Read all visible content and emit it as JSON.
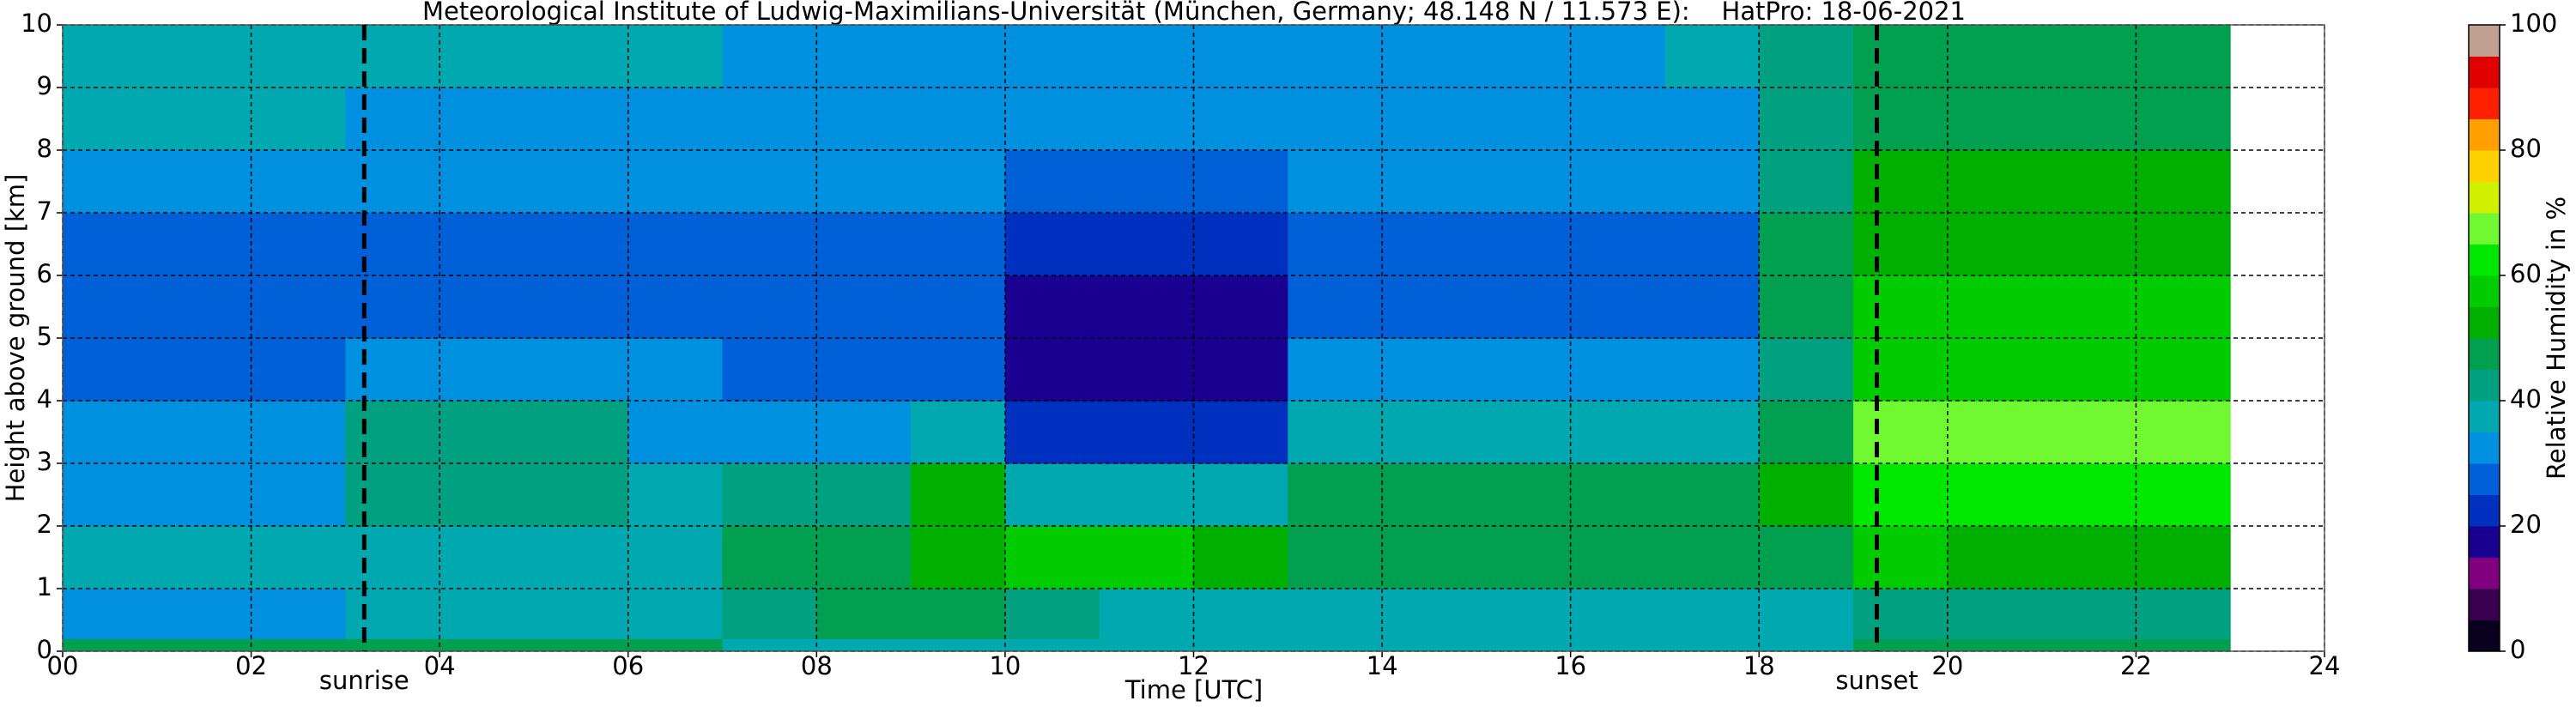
{
  "chart_data": {
    "type": "heatmap",
    "title": "Meteorological Institute of Ludwig-Maximilians-Universität (München, Germany; 48.148 N / 11.573 E):    HatPro: 18-06-2021",
    "xlabel": "Time [UTC]",
    "ylabel": "Height above ground [km]",
    "xlim": [
      0,
      24
    ],
    "ylim": [
      0,
      10
    ],
    "xticks": [
      {
        "value": 0,
        "label": "00"
      },
      {
        "value": 2,
        "label": "02"
      },
      {
        "value": 4,
        "label": "04"
      },
      {
        "value": 6,
        "label": "06"
      },
      {
        "value": 8,
        "label": "08"
      },
      10,
      12,
      14,
      16,
      18,
      20,
      22,
      24
    ],
    "yticks": [
      0,
      1,
      2,
      3,
      4,
      5,
      6,
      7,
      8,
      9,
      10
    ],
    "grid": true,
    "x_edges": [
      0,
      1,
      2,
      3,
      4,
      5,
      6,
      7,
      8,
      9,
      10,
      11,
      12,
      13,
      14,
      15,
      16,
      17,
      18,
      19,
      20,
      21,
      22,
      23
    ],
    "y_edges": [
      0,
      0.2,
      1,
      2,
      3,
      4,
      5,
      6,
      7,
      8,
      9,
      10
    ],
    "z": [
      [
        48,
        48,
        48,
        48,
        48,
        48,
        48,
        38,
        35,
        35,
        35,
        35,
        35,
        35,
        35,
        35,
        35,
        35,
        35,
        45,
        45,
        45,
        45
      ],
      [
        32,
        32,
        34,
        36,
        36,
        36,
        36,
        44,
        48,
        47,
        40,
        38,
        38,
        36,
        36,
        36,
        36,
        36,
        38,
        40,
        40,
        40,
        40
      ],
      [
        36,
        36,
        36,
        37,
        37,
        37,
        38,
        45,
        48,
        52,
        55,
        55,
        52,
        48,
        48,
        48,
        47,
        47,
        46,
        55,
        50,
        50,
        50
      ],
      [
        32,
        32,
        32,
        43,
        43,
        43,
        38,
        40,
        40,
        52,
        38,
        38,
        38,
        46,
        46,
        46,
        46,
        47,
        50,
        62,
        62,
        62,
        62
      ],
      [
        30,
        30,
        30,
        44,
        44,
        44,
        33,
        33,
        33,
        35,
        24,
        24,
        24,
        35,
        35,
        35,
        35,
        35,
        45,
        66,
        66,
        66,
        66
      ],
      [
        26,
        26,
        26,
        32,
        32,
        32,
        32,
        28,
        28,
        28,
        18,
        18,
        18,
        30,
        30,
        30,
        30,
        30,
        42,
        58,
        58,
        58,
        58
      ],
      [
        25,
        25,
        25,
        28,
        28,
        28,
        28,
        28,
        28,
        28,
        18,
        18,
        18,
        29,
        29,
        29,
        29,
        29,
        45,
        56,
        56,
        56,
        56
      ],
      [
        27,
        27,
        27,
        28,
        28,
        28,
        28,
        28,
        28,
        28,
        22,
        22,
        22,
        29,
        29,
        29,
        29,
        29,
        46,
        52,
        52,
        52,
        52
      ],
      [
        33,
        33,
        33,
        30,
        30,
        30,
        30,
        30,
        30,
        30,
        28,
        28,
        28,
        30,
        30,
        30,
        30,
        30,
        44,
        50,
        50,
        50,
        50
      ],
      [
        36,
        36,
        36,
        34,
        34,
        34,
        34,
        33,
        33,
        33,
        33,
        33,
        33,
        33,
        33,
        33,
        33,
        33,
        44,
        48,
        48,
        48,
        48
      ],
      [
        38,
        38,
        38,
        37,
        37,
        37,
        36,
        34,
        34,
        34,
        34,
        34,
        34,
        34,
        34,
        34,
        34,
        36,
        44,
        47,
        47,
        47,
        47
      ]
    ],
    "vlines": [
      {
        "x": 3.2,
        "label": "sunrise"
      },
      {
        "x": 19.25,
        "label": "sunset"
      }
    ],
    "colorbar": {
      "label": "Relative Humidity in %",
      "lim": [
        0,
        100
      ],
      "ticks": [
        0,
        20,
        40,
        60,
        80,
        100
      ],
      "colors": [
        "#0a0020",
        "#3a0050",
        "#800080",
        "#1a0090",
        "#0030c0",
        "#0060d8",
        "#0090e0",
        "#00a8b0",
        "#00a080",
        "#00a050",
        "#00b000",
        "#00cc00",
        "#00e800",
        "#70f830",
        "#d0f000",
        "#ffd000",
        "#ffa000",
        "#ff2000",
        "#e00000",
        "#c0a090"
      ]
    }
  }
}
